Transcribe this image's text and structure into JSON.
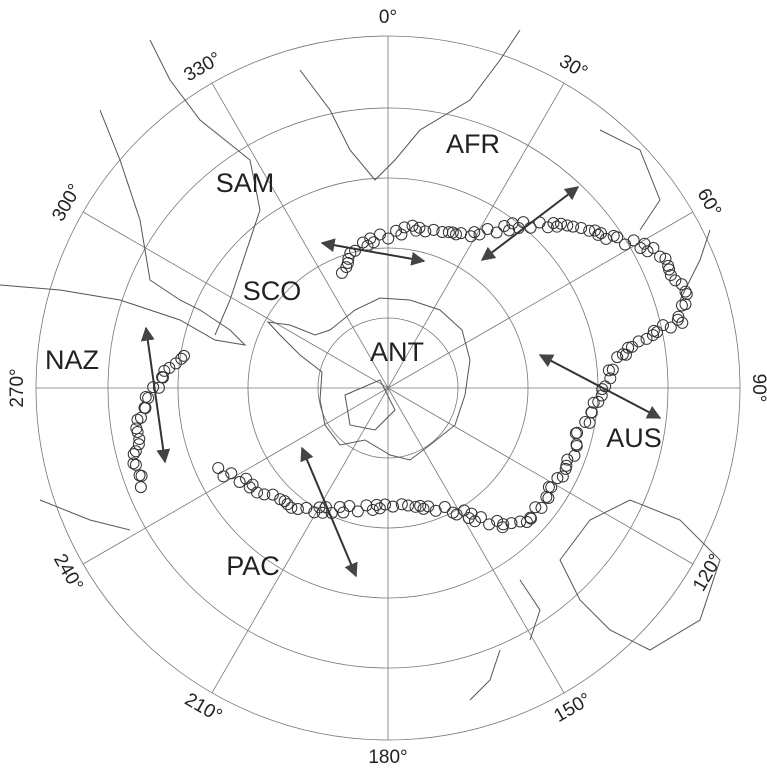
{
  "longitude_labels": [
    "0°",
    "30°",
    "60°",
    "90°",
    "120°",
    "150°",
    "180°",
    "210°",
    "240°",
    "270°",
    "300°",
    "330°"
  ],
  "plate_labels": [
    "AFR",
    "SAM",
    "SCO",
    "NAZ",
    "ANT",
    "AUS",
    "PAC"
  ]
}
